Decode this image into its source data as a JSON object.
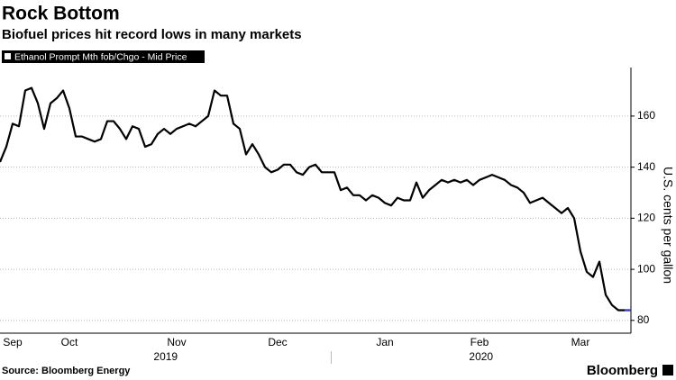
{
  "chart_data": {
    "type": "line",
    "title": "Rock Bottom",
    "subtitle": "Biofuel prices hit record lows in many markets",
    "y_label": "U.S. cents per gallon",
    "source": "Source: Bloomberg Energy",
    "brand": "Bloomberg",
    "categories": [
      null,
      null,
      "Sep",
      null,
      null,
      null,
      null,
      null,
      null,
      null,
      null,
      "Oct",
      null,
      null,
      null,
      null,
      null,
      null,
      null,
      null,
      null,
      null,
      null,
      null,
      null,
      null,
      null,
      null,
      "Nov",
      null,
      null,
      null,
      null,
      null,
      null,
      null,
      null,
      null,
      null,
      null,
      null,
      null,
      null,
      null,
      "Dec",
      null,
      null,
      null,
      null,
      null,
      null,
      null,
      null,
      null,
      null,
      null,
      null,
      null,
      null,
      null,
      null,
      "Jan",
      null,
      null,
      null,
      null,
      null,
      null,
      null,
      null,
      null,
      null,
      null,
      null,
      null,
      null,
      "Feb",
      null,
      null,
      null,
      null,
      null,
      null,
      null,
      null,
      null,
      null,
      null,
      null,
      null,
      null,
      null,
      "Mar",
      null,
      null,
      null,
      null,
      null,
      null,
      null,
      null
    ],
    "years": [
      "2019",
      "2020"
    ],
    "series": [
      {
        "name": "Ethanol Prompt Mth fob/Chgo - Mid Price",
        "color": "#000000",
        "last_segment_color": "#2a3fe0",
        "values": [
          142,
          148,
          157,
          156,
          170,
          171,
          165,
          155,
          165,
          167,
          170,
          163,
          152,
          152,
          151,
          150,
          151,
          158,
          158,
          155,
          151,
          156,
          155,
          148,
          149,
          153,
          155,
          153,
          155,
          156,
          157,
          156,
          158,
          160,
          170,
          168,
          168,
          157,
          155,
          145,
          149,
          145,
          140,
          138,
          139,
          141,
          141,
          138,
          137,
          140,
          141,
          138,
          138,
          138,
          131,
          132,
          129,
          129,
          127,
          129,
          128,
          126,
          125,
          128,
          127,
          127,
          134,
          128,
          131,
          133,
          135,
          134,
          135,
          134,
          135,
          133,
          135,
          136,
          137,
          136,
          135,
          133,
          132,
          130,
          126,
          127,
          128,
          126,
          124,
          122,
          124,
          120,
          107,
          99,
          97,
          103,
          90,
          86,
          84,
          84,
          84
        ]
      }
    ],
    "ylim": [
      75,
      179
    ],
    "yticks": [
      80,
      100,
      120,
      140,
      160
    ],
    "grid": true
  }
}
